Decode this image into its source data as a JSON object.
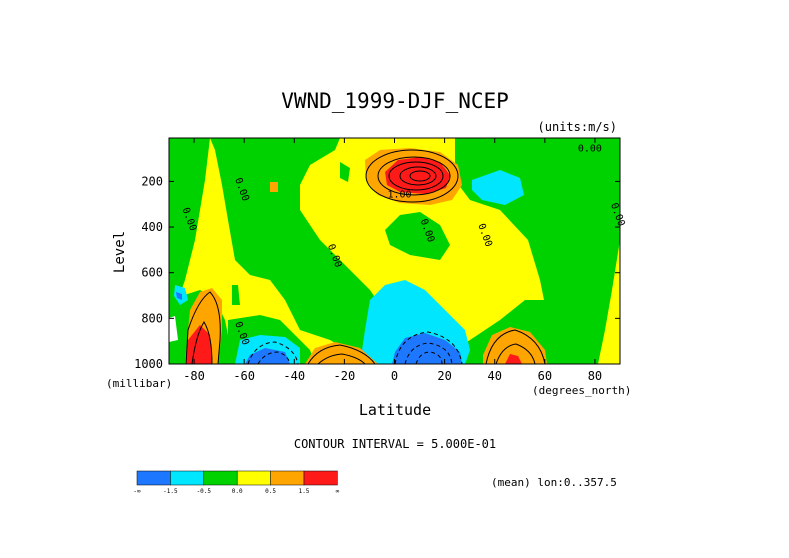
{
  "chart_data": {
    "type": "heatmap",
    "title": "VWND_1999-DJF_NCEP",
    "units_label": "(units:m/s)",
    "xlabel": "Latitude",
    "x_units": "(degrees_north)",
    "ylabel": "Level",
    "y_units": "(millibar)",
    "xlim": [
      -90,
      90
    ],
    "ylim": [
      1000,
      10
    ],
    "y_inverted": true,
    "x_ticks": [
      -80,
      -60,
      -40,
      -20,
      0,
      20,
      40,
      60,
      80
    ],
    "x_tick_labels": [
      "-80",
      "-60",
      "-40",
      "-20",
      "0",
      "20",
      "40",
      "60",
      "80"
    ],
    "y_ticks": [
      200,
      400,
      600,
      800,
      1000
    ],
    "y_tick_labels": [
      "200",
      "400",
      "600",
      "800",
      "1000"
    ],
    "contour_interval_label": "CONTOUR INTERVAL = 5.000E-01",
    "contour_labels": [
      {
        "text": "0.00",
        "x": 78,
        "y": 70
      },
      {
        "text": "0.00",
        "x": -62,
        "y": 240
      },
      {
        "text": "0.00",
        "x": -83,
        "y": 370
      },
      {
        "text": "0.00",
        "x": 88,
        "y": 350
      },
      {
        "text": "1.00",
        "x": 2,
        "y": 270
      },
      {
        "text": "0.00",
        "x": 12,
        "y": 420
      },
      {
        "text": "0.00",
        "x": 35,
        "y": 440
      },
      {
        "text": "0.00",
        "x": -25,
        "y": 530
      },
      {
        "text": "0.00",
        "x": -62,
        "y": 870
      }
    ],
    "levels": [
      -1.5,
      -0.5,
      0.0,
      0.5,
      1.0,
      1.5
    ],
    "legend": {
      "colors": [
        "#1e78ff",
        "#00e6ff",
        "#00d200",
        "#ffff00",
        "#ffa500",
        "#ff1a1a"
      ],
      "tick_labels": [
        "-∞",
        "-1.5",
        "-0.5",
        "0.0",
        "0.5",
        "1.5",
        "∞"
      ],
      "placement": "bottom-left"
    },
    "regions": [
      {
        "level": "1.0 to 1.5",
        "color": "#ffa500",
        "cx": 7,
        "cy": 180
      },
      {
        "level": "> 1.5",
        "color": "#ff1a1a",
        "cx": 7,
        "cy": 180
      },
      {
        "level": "< -0.5",
        "color": "#00e6ff",
        "cx": 42,
        "cy": 210
      },
      {
        "level": "< -1.5",
        "color": "#1e78ff",
        "cx": 12,
        "cy": 960
      },
      {
        "level": "< -1.5",
        "color": "#1e78ff",
        "cx": -55,
        "cy": 980
      },
      {
        "level": "> 1.5",
        "color": "#ff1a1a",
        "cx": -85,
        "cy": 950
      },
      {
        "level": "0.5 to 1.0",
        "color": "#ffa500",
        "cx": -20,
        "cy": 960
      },
      {
        "level": "0.5 to 1.0",
        "color": "#ffa500",
        "cx": 48,
        "cy": 930
      }
    ]
  },
  "footer": {
    "mean_label": "(mean) lon:0..357.5"
  }
}
